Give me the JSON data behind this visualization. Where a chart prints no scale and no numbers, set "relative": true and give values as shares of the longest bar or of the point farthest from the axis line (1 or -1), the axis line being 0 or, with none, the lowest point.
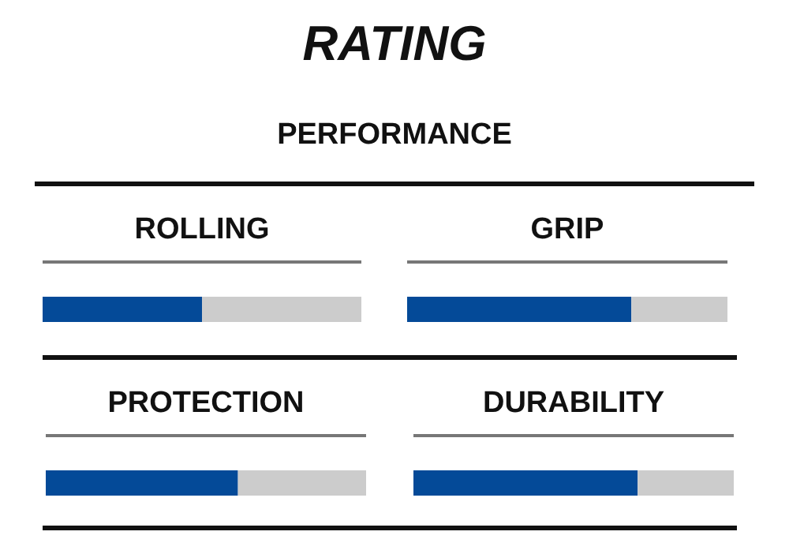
{
  "chart_data": [
    {
      "type": "other",
      "title": "RATING",
      "subtitle": "PERFORMANCE"
    },
    {
      "type": "bar",
      "title": "ROLLING",
      "orientation": "horizontal",
      "stacked": true,
      "relative": true,
      "categories": [
        null
      ],
      "series": [
        {
          "color": "#044a98",
          "values": [
            0.5
          ]
        },
        {
          "color": "#cccccc",
          "values": [
            0.5
          ]
        }
      ]
    },
    {
      "type": "bar",
      "title": "GRIP",
      "orientation": "horizontal",
      "stacked": true,
      "relative": true,
      "categories": [
        null
      ],
      "series": [
        {
          "color": "#044a98",
          "values": [
            0.7
          ]
        },
        {
          "color": "#cccccc",
          "values": [
            0.3
          ]
        }
      ]
    },
    {
      "type": "bar",
      "title": "PROTECTION",
      "orientation": "horizontal",
      "stacked": true,
      "relative": true,
      "categories": [
        null
      ],
      "series": [
        {
          "color": "#044a98",
          "values": [
            0.6
          ]
        },
        {
          "color": "#cccccc",
          "values": [
            0.4
          ]
        }
      ]
    },
    {
      "type": "bar",
      "title": "DURABILITY",
      "orientation": "horizontal",
      "stacked": true,
      "relative": true,
      "categories": [
        null
      ],
      "series": [
        {
          "color": "#044a98",
          "values": [
            0.7
          ]
        },
        {
          "color": "#cccccc",
          "values": [
            0.3
          ]
        }
      ]
    }
  ]
}
